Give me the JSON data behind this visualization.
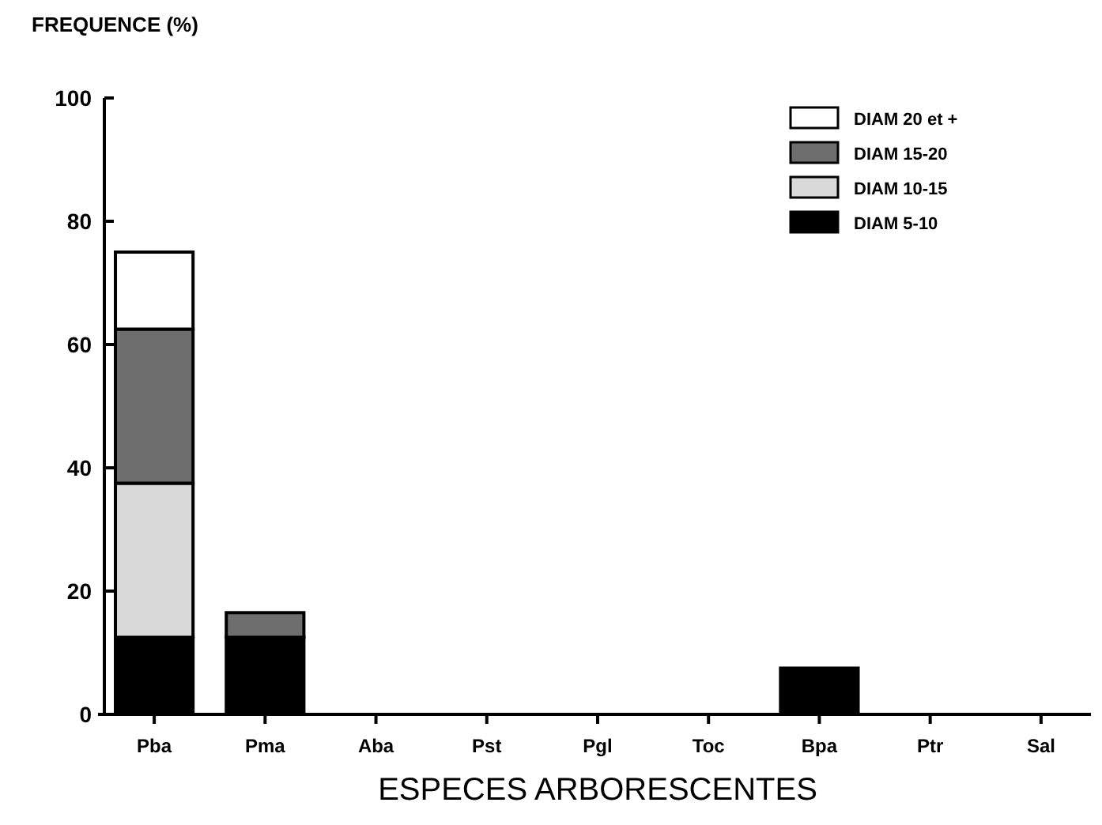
{
  "chart_data": {
    "type": "bar",
    "ylabel": "FREQUENCE (%)",
    "xlabel": "ESPECES ARBORESCENTES",
    "categories": [
      "Pba",
      "Pma",
      "Aba",
      "Pst",
      "Pgl",
      "Toc",
      "Bpa",
      "Ptr",
      "Sal"
    ],
    "stacked": true,
    "ylim": [
      0,
      100
    ],
    "yticks": [
      0,
      20,
      40,
      60,
      80,
      100
    ],
    "legend": "top right",
    "series": [
      {
        "name": "DIAM 5-10",
        "color": "#000000",
        "values": [
          12.5,
          12.5,
          0,
          0,
          0,
          0,
          7.5,
          0,
          0
        ]
      },
      {
        "name": "DIAM 10-15",
        "color": "#d9d9d9",
        "values": [
          25,
          0,
          0,
          0,
          0,
          0,
          0,
          0,
          0
        ]
      },
      {
        "name": "DIAM 15-20",
        "color": "#6e6e6e",
        "values": [
          25,
          4,
          0,
          0,
          0,
          0,
          0,
          0,
          0
        ]
      },
      {
        "name": "DIAM 20 et +",
        "color": "#ffffff",
        "values": [
          12.5,
          0,
          0,
          0,
          0,
          0,
          0,
          0,
          0
        ]
      }
    ]
  }
}
